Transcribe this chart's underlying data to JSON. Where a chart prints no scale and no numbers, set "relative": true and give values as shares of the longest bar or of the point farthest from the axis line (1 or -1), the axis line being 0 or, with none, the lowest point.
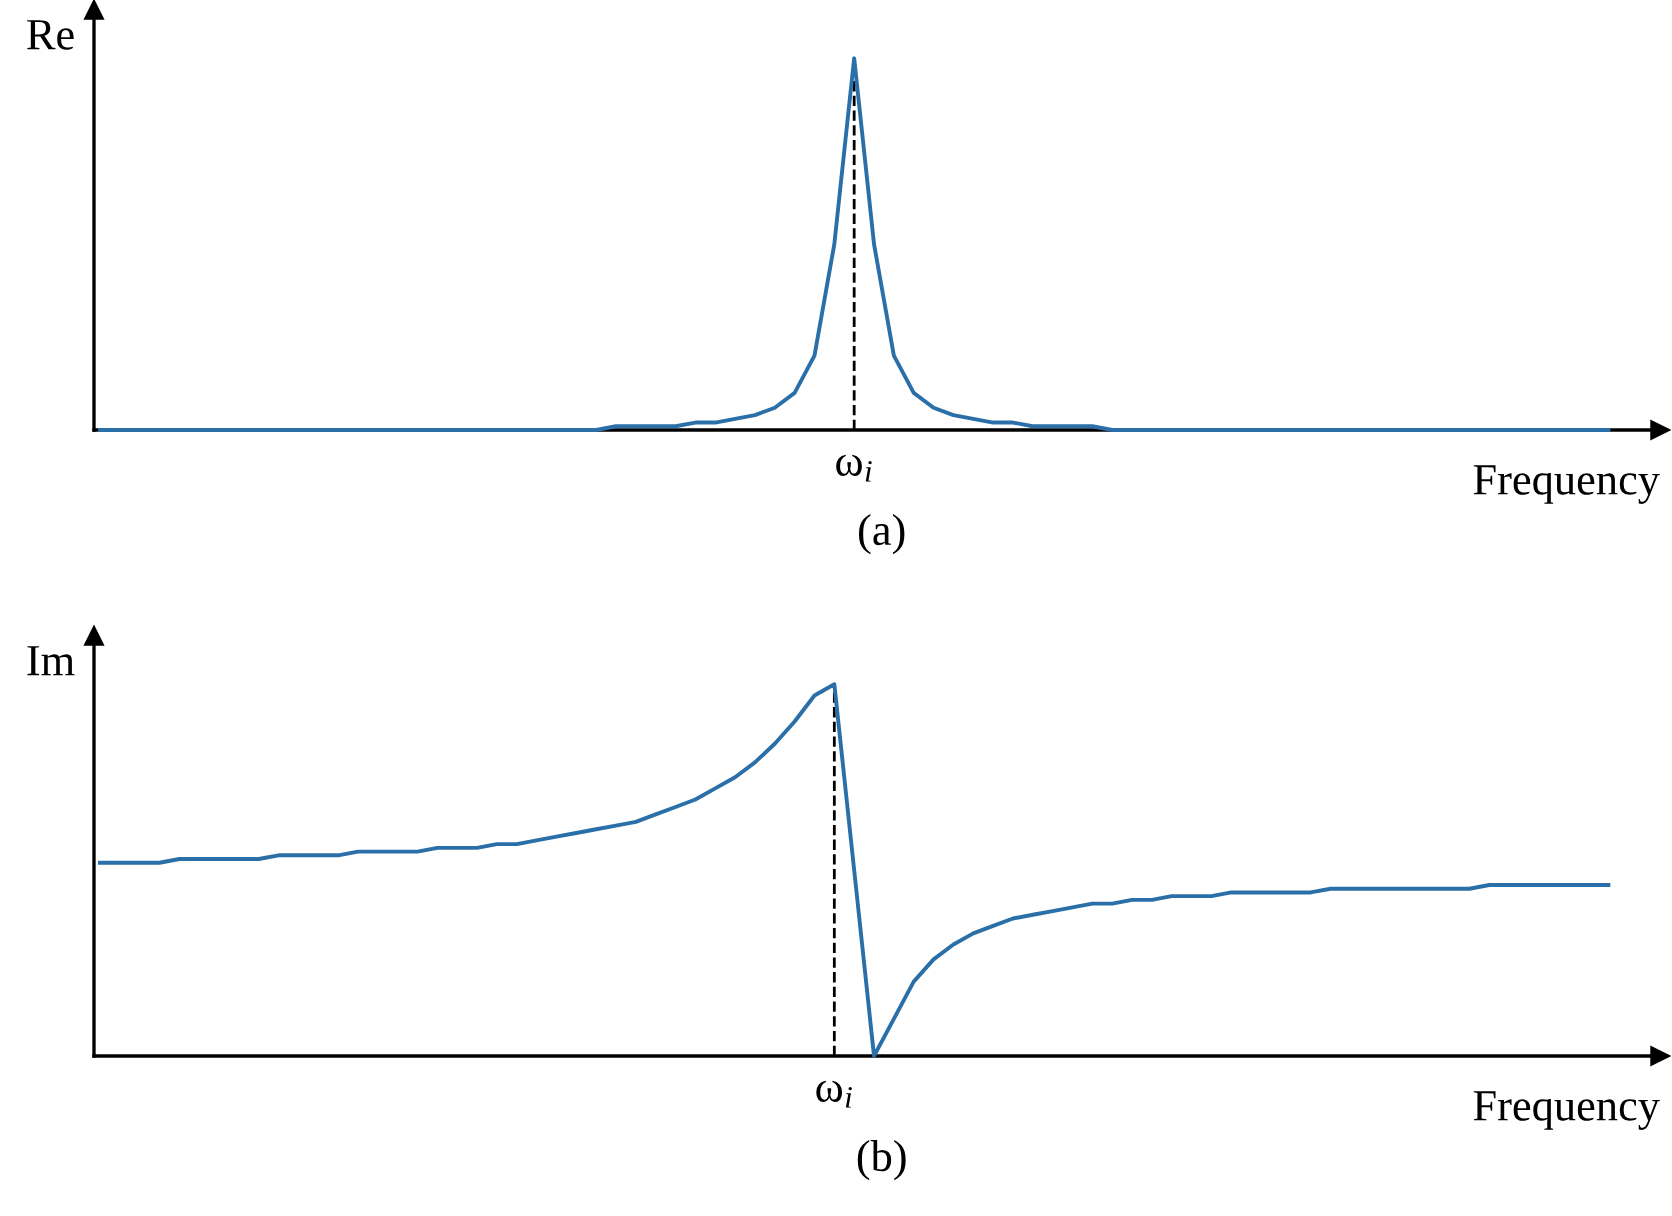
{
  "chart_data": [
    {
      "type": "line",
      "relative": true,
      "ylabel": "Re",
      "xlabel": "Frequency",
      "annotations": [
        "ω$_{i}$",
        "(a)"
      ],
      "categories": [
        null,
        null,
        null,
        null,
        null,
        null,
        null,
        null,
        null,
        null,
        null,
        null,
        null,
        null,
        null,
        null,
        null,
        null,
        null,
        null,
        null,
        null,
        null,
        null,
        null,
        null,
        null,
        null,
        null,
        null,
        null,
        null,
        null,
        null,
        null,
        null,
        null,
        null,
        null,
        null,
        null,
        null,
        null,
        null,
        null,
        null,
        null,
        null,
        null,
        null,
        null,
        null,
        null,
        null,
        null,
        null,
        null,
        null,
        null,
        null,
        null,
        null,
        null,
        null,
        null,
        null,
        null,
        null,
        null,
        null,
        null,
        null,
        null,
        null,
        null,
        null,
        null
      ],
      "series": [
        {
          "color": "#2a6fa8",
          "values": [
            0,
            0,
            0,
            0,
            0,
            0,
            0,
            0,
            0,
            0,
            0,
            0,
            0,
            0,
            0,
            0,
            0,
            0,
            0,
            0,
            0,
            0,
            0,
            0,
            0,
            0,
            0.01,
            0.01,
            0.01,
            0.01,
            0.02,
            0.02,
            0.03,
            0.04,
            0.06,
            0.1,
            0.2,
            0.5,
            1,
            0.5,
            0.2,
            0.1,
            0.06,
            0.04,
            0.03,
            0.02,
            0.02,
            0.01,
            0.01,
            0.01,
            0.01,
            0,
            0,
            0,
            0,
            0,
            0,
            0,
            0,
            0,
            0,
            0,
            0,
            0,
            0,
            0,
            0,
            0,
            0,
            0,
            0,
            0,
            0,
            0,
            0,
            0,
            0
          ]
        }
      ],
      "legend": false
    },
    {
      "type": "line",
      "relative": true,
      "ylabel": "Im",
      "xlabel": "Frequency",
      "annotations": [
        "ω$_{i}$",
        "(b)"
      ],
      "categories": [
        null,
        null,
        null,
        null,
        null,
        null,
        null,
        null,
        null,
        null,
        null,
        null,
        null,
        null,
        null,
        null,
        null,
        null,
        null,
        null,
        null,
        null,
        null,
        null,
        null,
        null,
        null,
        null,
        null,
        null,
        null,
        null,
        null,
        null,
        null,
        null,
        null,
        null,
        null,
        null,
        null,
        null,
        null,
        null,
        null,
        null,
        null,
        null,
        null,
        null,
        null,
        null,
        null,
        null,
        null,
        null,
        null,
        null,
        null,
        null,
        null,
        null,
        null,
        null,
        null,
        null,
        null,
        null,
        null,
        null,
        null,
        null,
        null,
        null,
        null,
        null,
        null
      ],
      "series": [
        {
          "color": "#2a6fa8",
          "values": [
            0.52,
            0.52,
            0.52,
            0.52,
            0.53,
            0.53,
            0.53,
            0.53,
            0.53,
            0.54,
            0.54,
            0.54,
            0.54,
            0.55,
            0.55,
            0.55,
            0.55,
            0.56,
            0.56,
            0.56,
            0.57,
            0.57,
            0.58,
            0.59,
            0.6,
            0.61,
            0.62,
            0.63,
            0.65,
            0.67,
            0.69,
            0.72,
            0.75,
            0.79,
            0.84,
            0.9,
            0.97,
            1,
            0.5,
            0,
            0.1,
            0.2,
            0.26,
            0.3,
            0.33,
            0.35,
            0.37,
            0.38,
            0.39,
            0.4,
            0.41,
            0.41,
            0.42,
            0.42,
            0.43,
            0.43,
            0.43,
            0.44,
            0.44,
            0.44,
            0.44,
            0.44,
            0.45,
            0.45,
            0.45,
            0.45,
            0.45,
            0.45,
            0.45,
            0.45,
            0.46,
            0.46,
            0.46,
            0.46,
            0.46,
            0.46,
            0.46
          ]
        }
      ],
      "legend": false
    }
  ]
}
